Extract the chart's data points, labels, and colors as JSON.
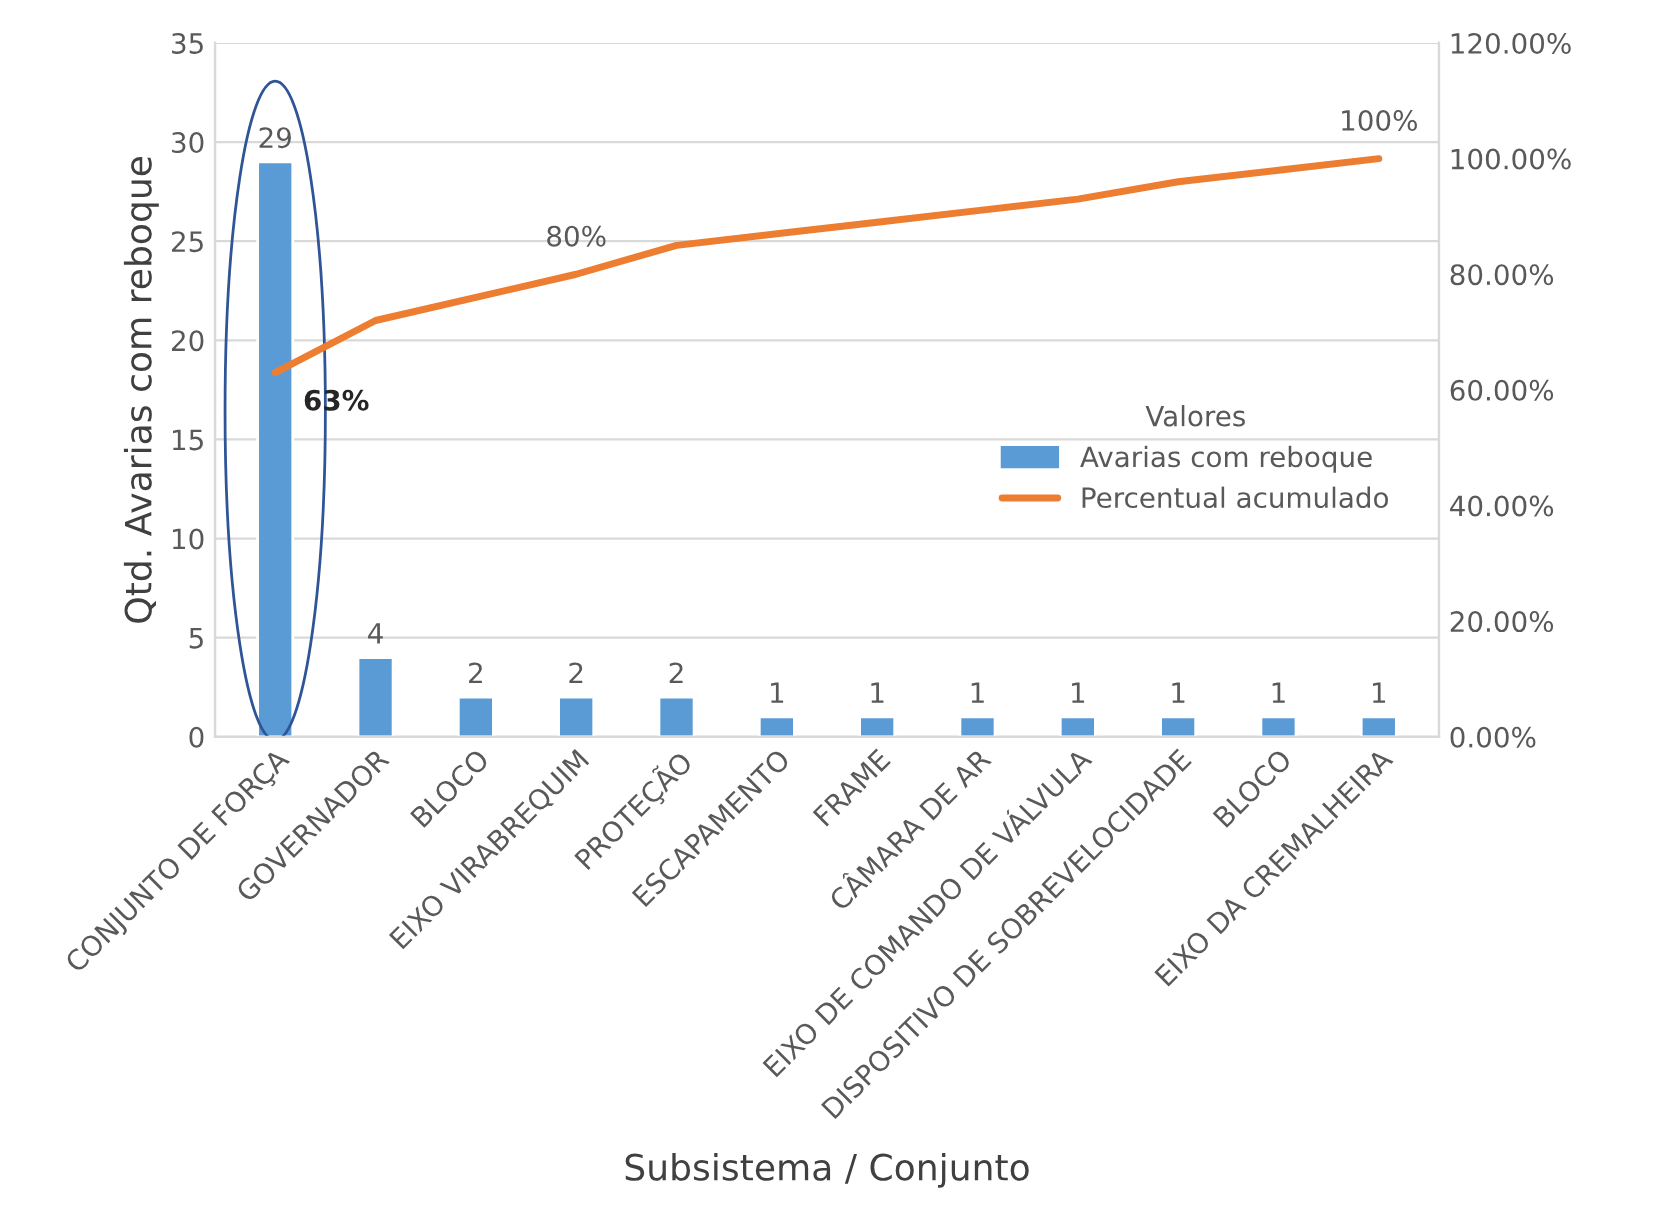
{
  "chart_data": {
    "type": "bar",
    "xlabel": "Subsistema / Conjunto",
    "ylabel": "Qtd. Avarias com reboque",
    "legend_title": "Valores",
    "legend": "center right",
    "grid": "y",
    "categories": [
      "CONJUNTO DE FORÇA",
      "GOVERNADOR",
      "BLOCO",
      "EIXO VIRABREQUIM",
      "PROTEÇÃO",
      "ESCAPAMENTO",
      "FRAME",
      "CÂMARA DE AR",
      "EIXO DE COMANDO DE VÁLVULA",
      "DISPOSITIVO DE SOBREVELOCIDADE",
      "BLOCO",
      "EIXO DA CREMALHEIRA"
    ],
    "series": [
      {
        "name": "Avarias com reboque",
        "color": "#5b9bd5",
        "values": [
          29,
          4,
          2,
          2,
          2,
          1,
          1,
          1,
          1,
          1,
          1,
          1
        ],
        "data_labels": true
      },
      {
        "name": "Percentual acumulado",
        "type": "line",
        "axis": "y2",
        "color": "#ed7d31",
        "marker": "none",
        "line_style": "solid",
        "values": [
          63,
          72,
          76,
          80,
          85,
          87,
          89,
          91,
          93,
          96,
          98,
          100
        ],
        "value_labels": [
          "63%",
          null,
          null,
          "80%",
          null,
          null,
          null,
          null,
          null,
          null,
          null,
          "100%"
        ]
      }
    ],
    "ylim": [
      0,
      35
    ],
    "yticks": [
      0,
      5,
      10,
      15,
      20,
      25,
      30,
      35
    ],
    "y2lim": [
      0,
      120
    ],
    "y2ticks": [
      {
        "value": 0,
        "label": "0.00%"
      },
      {
        "value": 20,
        "label": "20.00%"
      },
      {
        "value": 40,
        "label": "40.00%"
      },
      {
        "value": 60,
        "label": "60.00%"
      },
      {
        "value": 80,
        "label": "80.00%"
      },
      {
        "value": 100,
        "label": "100.00%"
      },
      {
        "value": 120,
        "label": "120.00%"
      }
    ]
  }
}
